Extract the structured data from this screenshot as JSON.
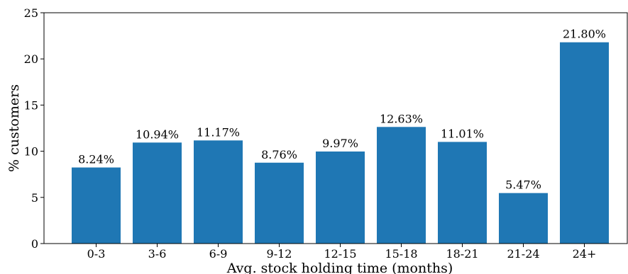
{
  "chart_data": {
    "type": "bar",
    "categories": [
      "0-3",
      "3-6",
      "6-9",
      "9-12",
      "12-15",
      "15-18",
      "18-21",
      "21-24",
      "24+"
    ],
    "values": [
      8.24,
      10.94,
      11.17,
      8.76,
      9.97,
      12.63,
      11.01,
      5.47,
      21.8
    ],
    "data_labels": [
      "8.24%",
      "10.94%",
      "11.17%",
      "8.76%",
      "9.97%",
      "12.63%",
      "11.01%",
      "5.47%",
      "21.80%"
    ],
    "title": "",
    "xlabel": "Avg. stock holding time (months)",
    "ylabel": "% customers",
    "ylim": [
      0,
      25
    ],
    "yticks": [
      0,
      5,
      10,
      15,
      20,
      25
    ],
    "grid": false,
    "bar_color": "#1f77b4"
  }
}
